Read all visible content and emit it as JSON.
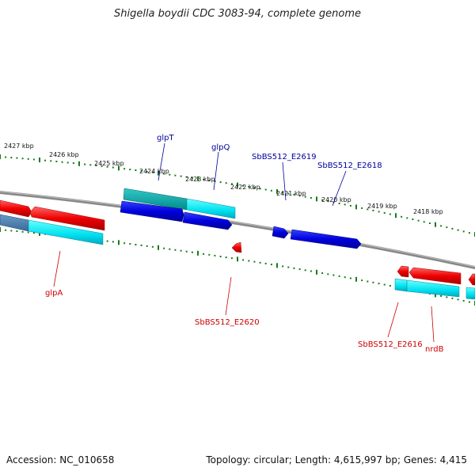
{
  "title": "Shigella boydii CDC 3083-94, complete genome",
  "footer": {
    "accession": "Accession: NC_010658",
    "summary": "Topology: circular; Length: 4,615,997 bp; Genes: 4,415"
  },
  "scale": {
    "unit": "kbp",
    "ticks": [
      "2427 kbp",
      "2426 kbp",
      "2425 kbp",
      "2424 kbp",
      "2423 kbp",
      "2422 kbp",
      "2421 kbp",
      "2420 kbp",
      "2419 kbp",
      "2418 kbp"
    ]
  },
  "colors": {
    "forward_gene": "#ff0000",
    "reverse_gene": "#0000ee",
    "forward_cds": "#00e5ff",
    "backbone": "#808080",
    "tick": "#1a7a1a",
    "forward_label": "#cc0000",
    "reverse_label": "#000099"
  },
  "labels": {
    "glpT": "glpT",
    "glpQ": "glpQ",
    "E2619": "SbBS512_E2619",
    "E2618": "SbBS512_E2618",
    "glpA": "glpA",
    "E2620": "SbBS512_E2620",
    "E2616": "SbBS512_E2616",
    "nrdB": "nrdB"
  }
}
